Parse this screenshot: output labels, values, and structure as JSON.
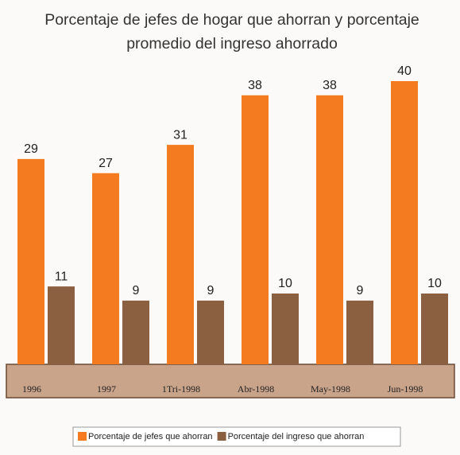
{
  "chart_data": {
    "type": "bar",
    "title": "Porcentaje de jefes de hogar que ahorran y porcentaje promedio del ingreso ahorrado",
    "categories": [
      "1996",
      "1997",
      "1Tri-1998",
      "Abr-1998",
      "May-1998",
      "Jun-1998"
    ],
    "series": [
      {
        "name": "Porcentaje de jefes que ahorran",
        "color": "#f47b20",
        "values": [
          29,
          27,
          31,
          38,
          38,
          40
        ]
      },
      {
        "name": "Porcentaje del ingreso que ahorran",
        "color": "#8a6040",
        "values": [
          11,
          9,
          9,
          10,
          9,
          10
        ]
      }
    ],
    "legend": "bottom"
  }
}
